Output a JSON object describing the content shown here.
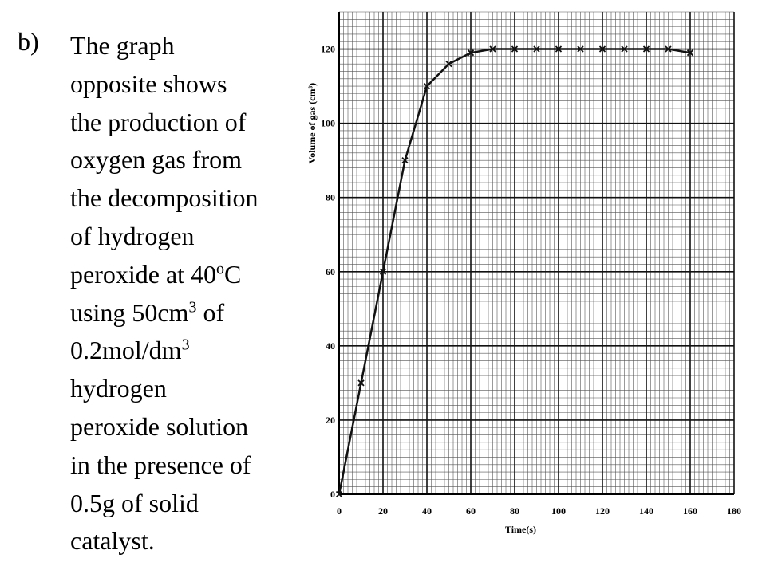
{
  "label": "b)",
  "paragraph": [
    [
      {
        "text": "The graph"
      }
    ],
    [
      {
        "text": "opposite shows"
      }
    ],
    [
      {
        "text": "the production of"
      }
    ],
    [
      {
        "text": "oxygen gas from"
      }
    ],
    [
      {
        "text": "the decomposition"
      }
    ],
    [
      {
        "text": "of hydrogen"
      }
    ],
    [
      {
        "text": "peroxide at 40"
      },
      {
        "sup": "o"
      },
      {
        "text": "C"
      }
    ],
    [
      {
        "text": "using 50cm"
      },
      {
        "sup": "3"
      },
      {
        "text": " of"
      }
    ],
    [
      {
        "text": "0.2mol/dm"
      },
      {
        "sup": "3"
      }
    ],
    [
      {
        "text": "hydrogen"
      }
    ],
    [
      {
        "text": "peroxide solution"
      }
    ],
    [
      {
        "text": "in the presence of"
      }
    ],
    [
      {
        "text": "0.5g of solid"
      }
    ],
    [
      {
        "text": "catalyst."
      }
    ]
  ],
  "chart_data": {
    "type": "line",
    "x_label": "Time(s)",
    "y_label": "Volume of gas (cm³)",
    "x": [
      0,
      10,
      20,
      30,
      40,
      50,
      60,
      70,
      80,
      90,
      100,
      110,
      120,
      130,
      140,
      150,
      160
    ],
    "series": [
      {
        "color": "#111111",
        "values": [
          0,
          30,
          60,
          90,
          110,
          116,
          119,
          120,
          120,
          120,
          120,
          120,
          120,
          120,
          120,
          120,
          119
        ]
      }
    ],
    "xlim": [
      0,
      180
    ],
    "xticks": [
      0,
      20,
      40,
      60,
      80,
      100,
      120,
      140,
      160,
      180
    ],
    "ylim": [
      0,
      130
    ],
    "yticks": [
      0,
      20,
      40,
      60,
      80,
      100,
      120
    ],
    "grid": true
  }
}
